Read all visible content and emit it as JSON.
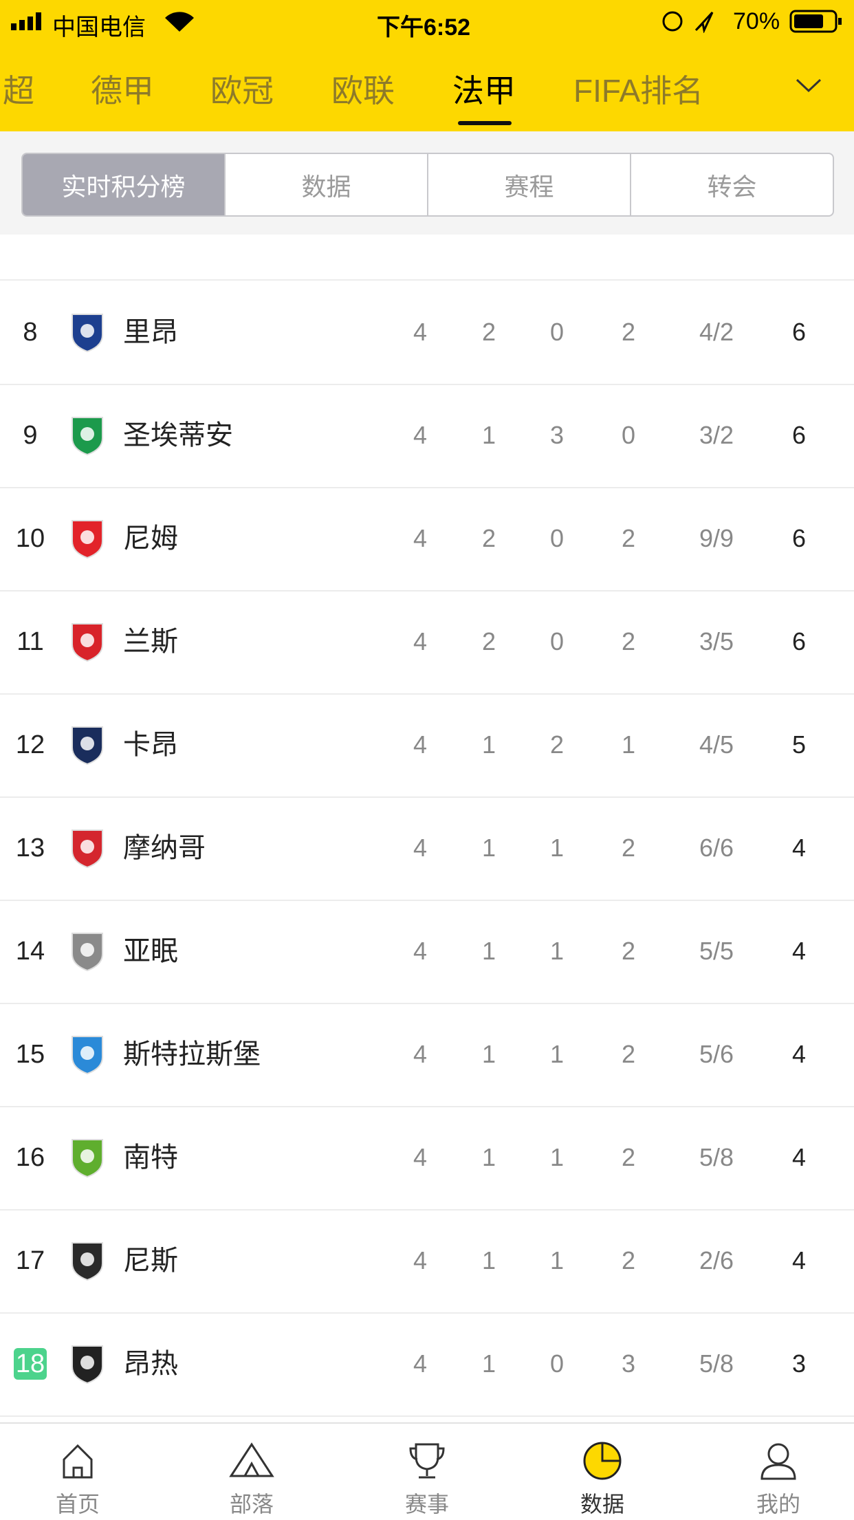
{
  "status_bar": {
    "carrier": "中国电信",
    "time": "下午6:52",
    "battery": "70%"
  },
  "tabs": [
    "超",
    "德甲",
    "欧冠",
    "欧联",
    "法甲",
    "FIFA排名"
  ],
  "active_tab": 4,
  "segments": [
    "实时积分榜",
    "数据",
    "赛程",
    "转会"
  ],
  "active_segment": 0,
  "table": {
    "rows": [
      {
        "rank": 8,
        "team": "里昂",
        "played": 4,
        "won": 2,
        "drawn": 0,
        "lost": 2,
        "goals": "4/2",
        "points": 6,
        "logo_color": "#1d3f8f"
      },
      {
        "rank": 9,
        "team": "圣埃蒂安",
        "played": 4,
        "won": 1,
        "drawn": 3,
        "lost": 0,
        "goals": "3/2",
        "points": 6,
        "logo_color": "#1c9a4c"
      },
      {
        "rank": 10,
        "team": "尼姆",
        "played": 4,
        "won": 2,
        "drawn": 0,
        "lost": 2,
        "goals": "9/9",
        "points": 6,
        "logo_color": "#e2232a"
      },
      {
        "rank": 11,
        "team": "兰斯",
        "played": 4,
        "won": 2,
        "drawn": 0,
        "lost": 2,
        "goals": "3/5",
        "points": 6,
        "logo_color": "#d8232a"
      },
      {
        "rank": 12,
        "team": "卡昂",
        "played": 4,
        "won": 1,
        "drawn": 2,
        "lost": 1,
        "goals": "4/5",
        "points": 5,
        "logo_color": "#1a2d5c"
      },
      {
        "rank": 13,
        "team": "摩纳哥",
        "played": 4,
        "won": 1,
        "drawn": 1,
        "lost": 2,
        "goals": "6/6",
        "points": 4,
        "logo_color": "#d4262e"
      },
      {
        "rank": 14,
        "team": "亚眠",
        "played": 4,
        "won": 1,
        "drawn": 1,
        "lost": 2,
        "goals": "5/5",
        "points": 4,
        "logo_color": "#8a8a8a"
      },
      {
        "rank": 15,
        "team": "斯特拉斯堡",
        "played": 4,
        "won": 1,
        "drawn": 1,
        "lost": 2,
        "goals": "5/6",
        "points": 4,
        "logo_color": "#2b8ad8"
      },
      {
        "rank": 16,
        "team": "南特",
        "played": 4,
        "won": 1,
        "drawn": 1,
        "lost": 2,
        "goals": "5/8",
        "points": 4,
        "logo_color": "#5fae2e"
      },
      {
        "rank": 17,
        "team": "尼斯",
        "played": 4,
        "won": 1,
        "drawn": 1,
        "lost": 2,
        "goals": "2/6",
        "points": 4,
        "logo_color": "#2a2a2a"
      },
      {
        "rank": 18,
        "team": "昂热",
        "played": 4,
        "won": 1,
        "drawn": 0,
        "lost": 3,
        "goals": "5/8",
        "points": 3,
        "logo_color": "#222222",
        "badge_color": "#4cd38c"
      }
    ]
  },
  "nav": [
    "首页",
    "部落",
    "赛事",
    "数据",
    "我的"
  ],
  "active_nav": 3
}
